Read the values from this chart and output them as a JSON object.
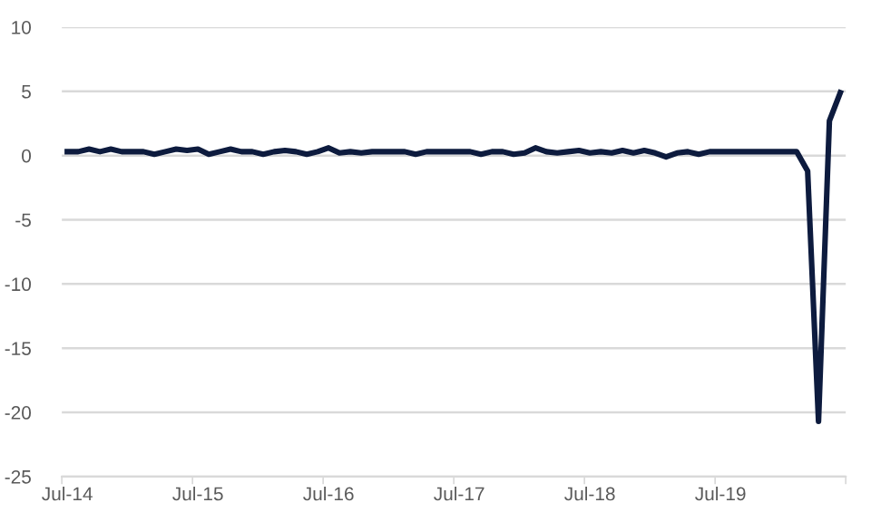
{
  "chart_data": {
    "type": "line",
    "categories": [
      "Jul-14",
      null,
      null,
      null,
      null,
      null,
      null,
      null,
      null,
      null,
      null,
      null,
      "Jul-15",
      null,
      null,
      null,
      null,
      null,
      null,
      null,
      null,
      null,
      null,
      null,
      "Jul-16",
      null,
      null,
      null,
      null,
      null,
      null,
      null,
      null,
      null,
      null,
      null,
      "Jul-17",
      null,
      null,
      null,
      null,
      null,
      null,
      null,
      null,
      null,
      null,
      null,
      "Jul-18",
      null,
      null,
      null,
      null,
      null,
      null,
      null,
      null,
      null,
      null,
      null,
      "Jul-19",
      null,
      null,
      null,
      null,
      null,
      null,
      null,
      null,
      null,
      null,
      null
    ],
    "series": [
      {
        "color": "#0d1b3e",
        "values": [
          0.3,
          0.3,
          0.5,
          0.3,
          0.5,
          0.3,
          0.3,
          0.3,
          0.1,
          0.3,
          0.5,
          0.4,
          0.5,
          0.1,
          0.3,
          0.5,
          0.3,
          0.3,
          0.1,
          0.3,
          0.4,
          0.3,
          0.1,
          0.3,
          0.6,
          0.2,
          0.3,
          0.2,
          0.3,
          0.3,
          0.3,
          0.3,
          0.1,
          0.3,
          0.3,
          0.3,
          0.3,
          0.3,
          0.1,
          0.3,
          0.3,
          0.1,
          0.2,
          0.6,
          0.3,
          0.2,
          0.3,
          0.4,
          0.2,
          0.3,
          0.2,
          0.4,
          0.2,
          0.4,
          0.2,
          -0.1,
          0.2,
          0.3,
          0.1,
          0.3,
          0.3,
          0.3,
          0.3,
          0.3,
          0.3,
          0.3,
          0.3,
          0.3,
          -1.2,
          -20.7,
          2.7,
          4.9
        ]
      }
    ],
    "ylim": [
      -25,
      10
    ],
    "yticks": [
      -25,
      -20,
      -15,
      -10,
      -5,
      0,
      5,
      10
    ],
    "grid": "y",
    "marker": "none",
    "line_style": "solid",
    "legend": false
  }
}
